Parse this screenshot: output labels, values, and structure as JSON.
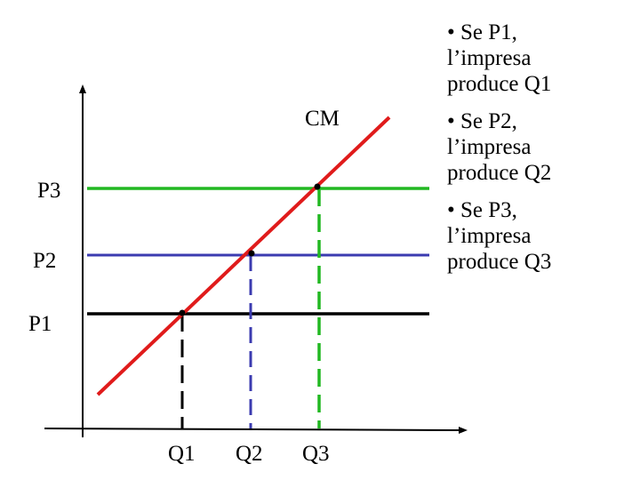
{
  "curve_label": "CM",
  "price_labels": [
    "P3",
    "P2",
    "P1"
  ],
  "quantity_labels": [
    "Q1",
    "Q2",
    "Q3"
  ],
  "bullets": [
    "• Se P1,\nl’impresa\nproduce Q1",
    "• Se P2,\nl’impresa\nproduce Q2",
    "• Se P3,\nl’impresa\nproduce Q3"
  ],
  "colors": {
    "curve": "#e01b1b",
    "p1_line": "#000000",
    "p2_line": "#3b3bb0",
    "p3_line": "#22b822",
    "axes": "#000000"
  }
}
